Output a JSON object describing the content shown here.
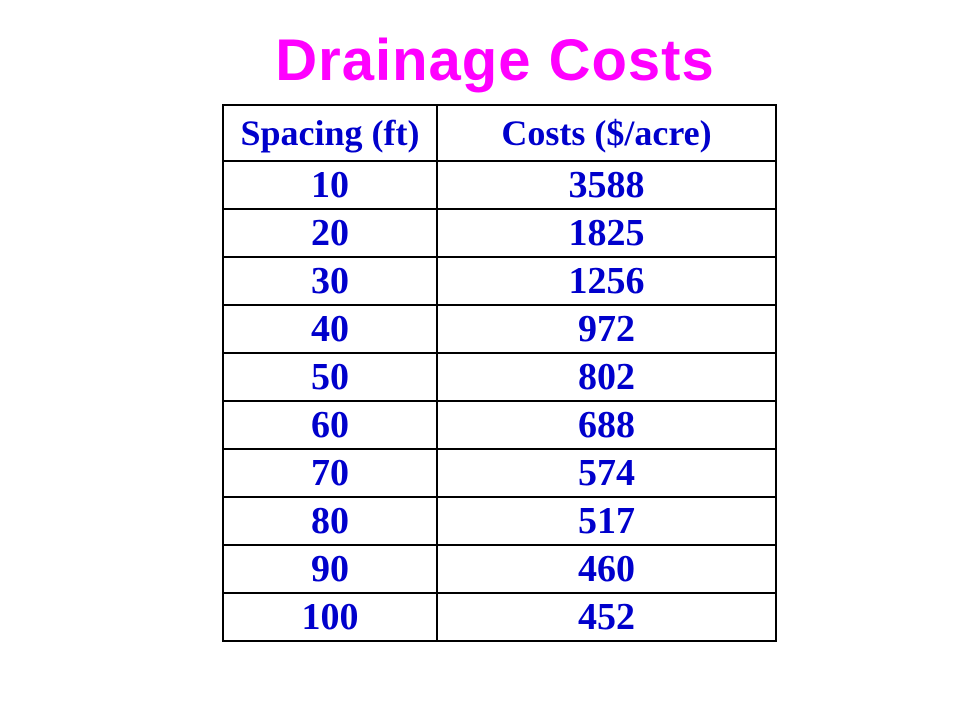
{
  "title": "Drainage Costs",
  "table": {
    "headers": [
      "Spacing (ft)",
      "Costs ($/acre)"
    ],
    "rows": [
      [
        "10",
        "3588"
      ],
      [
        "20",
        "1825"
      ],
      [
        "30",
        "1256"
      ],
      [
        "40",
        "972"
      ],
      [
        "50",
        "802"
      ],
      [
        "60",
        "688"
      ],
      [
        "70",
        "574"
      ],
      [
        "80",
        "517"
      ],
      [
        "90",
        "460"
      ],
      [
        "100",
        "452"
      ]
    ]
  },
  "colors": {
    "title": "#ff00ff",
    "table_text": "#0000cc",
    "border": "#000000"
  }
}
